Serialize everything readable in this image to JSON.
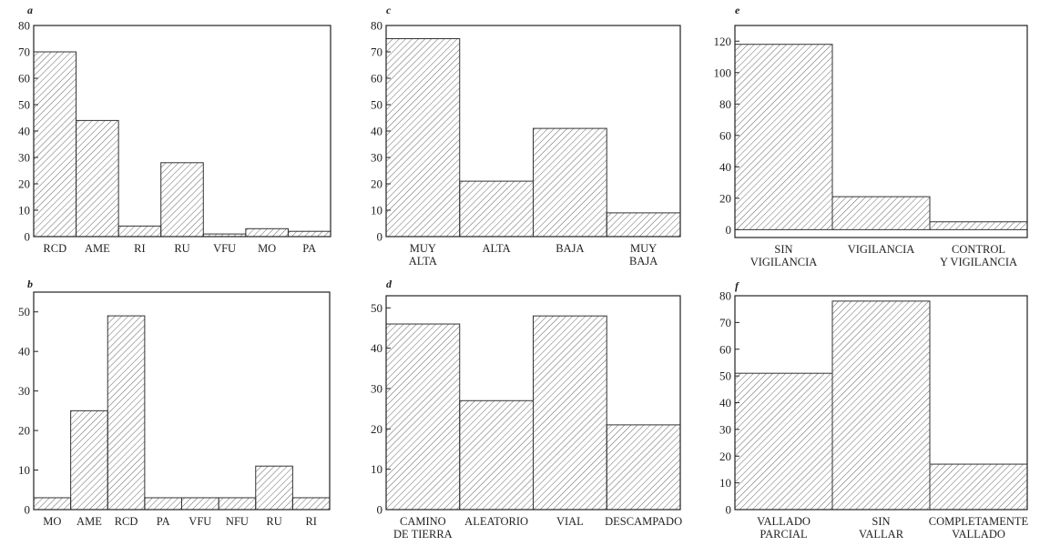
{
  "chart_data": [
    {
      "id": "a",
      "panel_label": "a",
      "type": "bar",
      "categories": [
        "RCD",
        "AME",
        "RI",
        "RU",
        "VFU",
        "MO",
        "PA"
      ],
      "values": [
        70,
        44,
        4,
        28,
        1,
        3,
        2
      ],
      "ylim": [
        0,
        80
      ],
      "yticks": [
        0,
        10,
        20,
        30,
        40,
        50,
        60,
        70,
        80
      ],
      "bar_fill": "hatched",
      "title": "",
      "xlabel": "",
      "ylabel": ""
    },
    {
      "id": "b",
      "panel_label": "b",
      "type": "bar",
      "categories": [
        "MO",
        "AME",
        "RCD",
        "PA",
        "VFU",
        "NFU",
        "RU",
        "RI"
      ],
      "values": [
        3,
        25,
        49,
        3,
        3,
        3,
        11,
        3
      ],
      "ylim": [
        0,
        55
      ],
      "yticks": [
        0,
        10,
        20,
        30,
        40,
        50
      ],
      "bar_fill": "hatched",
      "title": "",
      "xlabel": "",
      "ylabel": ""
    },
    {
      "id": "c",
      "panel_label": "c",
      "type": "bar",
      "categories": [
        [
          "MUY",
          "ALTA"
        ],
        [
          "ALTA"
        ],
        [
          "BAJA"
        ],
        [
          "MUY",
          "BAJA"
        ]
      ],
      "values": [
        75,
        21,
        41,
        9
      ],
      "ylim": [
        0,
        80
      ],
      "yticks": [
        0,
        10,
        20,
        30,
        40,
        50,
        60,
        70,
        80
      ],
      "bar_fill": "hatched",
      "title": "",
      "xlabel": "",
      "ylabel": ""
    },
    {
      "id": "d",
      "panel_label": "d",
      "type": "bar",
      "categories": [
        [
          "CAMINO",
          "DE TIERRA"
        ],
        [
          "ALEATORIO"
        ],
        [
          "VIAL"
        ],
        [
          "DESCAMPADO"
        ]
      ],
      "values": [
        46,
        27,
        48,
        21
      ],
      "ylim": [
        0,
        53
      ],
      "yticks": [
        0,
        10,
        20,
        30,
        40,
        50
      ],
      "bar_fill": "hatched",
      "title": "",
      "xlabel": "",
      "ylabel": ""
    },
    {
      "id": "e",
      "panel_label": "e",
      "type": "bar",
      "categories": [
        [
          "SIN",
          "VIGILANCIA"
        ],
        [
          "VIGILANCIA"
        ],
        [
          "CONTROL",
          "Y VIGILANCIA"
        ]
      ],
      "values": [
        118,
        21,
        5
      ],
      "ylim": [
        -5,
        130
      ],
      "yticks": [
        0,
        20,
        40,
        60,
        80,
        100,
        120
      ],
      "bar_fill": "hatched",
      "title": "",
      "xlabel": "",
      "ylabel": ""
    },
    {
      "id": "f",
      "panel_label": "f",
      "type": "bar",
      "categories": [
        [
          "VALLADO",
          "PARCIAL"
        ],
        [
          "SIN",
          "VALLAR"
        ],
        [
          "COMPLETAMENTE",
          "VALLADO"
        ]
      ],
      "values": [
        51,
        78,
        17
      ],
      "ylim": [
        0,
        80
      ],
      "yticks": [
        0,
        10,
        20,
        30,
        40,
        50,
        60,
        70,
        80
      ],
      "bar_fill": "hatched",
      "title": "",
      "xlabel": "",
      "ylabel": ""
    }
  ],
  "colors": {
    "axis": "#222222",
    "bar_stroke": "#333333",
    "hatch": "#555555",
    "background": "#ffffff"
  }
}
